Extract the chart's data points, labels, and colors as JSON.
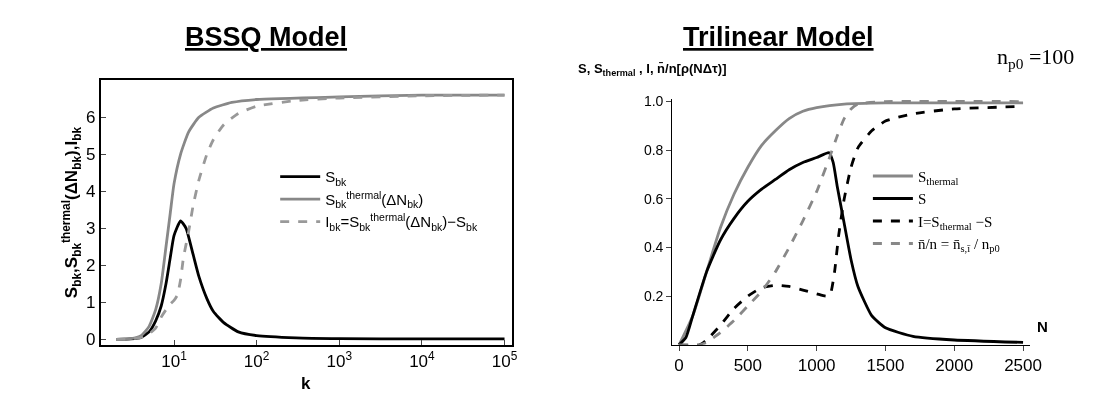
{
  "chart_data": [
    {
      "type": "line",
      "title": "BSSQ Model",
      "xlabel": "k",
      "ylabel": "S$_{bk}$,S$_{bk}$$^{thermal}$(ΔN$_{bk}$),I$_{bk}$",
      "log": "x",
      "xlim": [
        1.3,
        123000
      ],
      "ylim": [
        -0.15,
        7
      ],
      "xticks": [
        {
          "value": 10,
          "label": "10$^{1}$"
        },
        {
          "value": 100,
          "label": "10$^{2}$"
        },
        {
          "value": 1000,
          "label": "10$^{3}$"
        },
        {
          "value": 10000,
          "label": "10$^{4}$"
        },
        {
          "value": 100000,
          "label": "10$^{5}$"
        }
      ],
      "yticks": [
        0,
        1,
        2,
        3,
        4,
        5,
        6
      ],
      "legend": "right",
      "series": [
        {
          "name": "S$_{bk}$",
          "color": "#000000",
          "line_style": "solid",
          "x": [
            2,
            3,
            4,
            5,
            6,
            7,
            8,
            9,
            10,
            12,
            14,
            17,
            20,
            25,
            30,
            40,
            60,
            100,
            300,
            1000,
            10000,
            100000
          ],
          "values": [
            0,
            0.01,
            0.05,
            0.2,
            0.5,
            0.9,
            1.5,
            2.2,
            2.8,
            3.2,
            3.0,
            2.3,
            1.7,
            1.1,
            0.75,
            0.45,
            0.2,
            0.1,
            0.04,
            0.02,
            0.01,
            0.01
          ]
        },
        {
          "name": "S$_{bk}$$^{thermal}$(ΔN$_{bk}$)",
          "color": "#888888",
          "line_style": "solid",
          "x": [
            2,
            3,
            4,
            5,
            6,
            7,
            8,
            9,
            10,
            12,
            15,
            20,
            30,
            50,
            100,
            1000,
            10000,
            100000
          ],
          "values": [
            0,
            0.02,
            0.1,
            0.35,
            0.8,
            1.5,
            2.5,
            3.4,
            4.2,
            5.0,
            5.6,
            6.0,
            6.25,
            6.4,
            6.48,
            6.55,
            6.6,
            6.6
          ]
        },
        {
          "name": "I$_{bk}$=S$_{bk}$$^{thermal}$(ΔN$_{bk}$)−S$_{bk}$",
          "color": "#999999",
          "line_style": "dashed",
          "x": [
            2,
            3,
            4,
            5,
            6,
            7,
            8,
            9,
            10,
            11,
            12,
            13,
            15,
            17,
            20,
            25,
            30,
            40,
            60,
            100,
            300,
            1000,
            10000,
            100000
          ],
          "values": [
            0,
            0.01,
            0.05,
            0.15,
            0.3,
            0.6,
            0.8,
            0.95,
            1.05,
            1.2,
            1.6,
            2.2,
            2.9,
            3.6,
            4.3,
            5.0,
            5.4,
            5.8,
            6.1,
            6.3,
            6.45,
            6.52,
            6.58,
            6.6
          ]
        }
      ]
    },
    {
      "type": "line",
      "title": "Trilinear Model",
      "xlabel": "N",
      "ylabel": "S, S$_{thermal}$ , I, n̄/n[ρ(NΔτ)]",
      "xlim": [
        -50,
        2550
      ],
      "ylim": [
        0,
        1.01
      ],
      "xticks": [
        0,
        500,
        1000,
        1500,
        2000,
        2500
      ],
      "yticks": [
        0.2,
        0.4,
        0.6,
        0.8,
        {
          "value": 1,
          "label": "1.0"
        }
      ],
      "legend": "right",
      "annotations": [
        "n$_{p0}$ =100"
      ],
      "series": [
        {
          "name": "S$_{thermal}$",
          "color": "#888888",
          "line_style": "solid",
          "x": [
            0,
            100,
            200,
            300,
            400,
            500,
            600,
            700,
            800,
            900,
            1000,
            1200,
            1500,
            2500
          ],
          "values": [
            0,
            0.12,
            0.3,
            0.48,
            0.62,
            0.73,
            0.82,
            0.88,
            0.93,
            0.96,
            0.975,
            0.99,
            0.995,
            0.995
          ]
        },
        {
          "name": "S",
          "color": "#000000",
          "line_style": "solid",
          "x": [
            0,
            50,
            100,
            200,
            300,
            400,
            500,
            600,
            700,
            800,
            900,
            1000,
            1090,
            1120,
            1150,
            1200,
            1250,
            1300,
            1400,
            1500,
            1700,
            2000,
            2500
          ],
          "values": [
            0,
            0.03,
            0.12,
            0.3,
            0.43,
            0.52,
            0.59,
            0.64,
            0.68,
            0.72,
            0.75,
            0.77,
            0.79,
            0.75,
            0.65,
            0.5,
            0.35,
            0.24,
            0.12,
            0.07,
            0.035,
            0.02,
            0.01
          ]
        },
        {
          "name": "I=S$_{thermal}$ −S",
          "color": "#000000",
          "line_style": "dashed",
          "x": [
            0,
            150,
            200,
            300,
            400,
            500,
            600,
            700,
            800,
            900,
            1000,
            1070,
            1100,
            1130,
            1160,
            1200,
            1250,
            1300,
            1400,
            1500,
            1700,
            2000,
            2500
          ],
          "values": [
            0,
            0,
            0.02,
            0.08,
            0.15,
            0.2,
            0.235,
            0.245,
            0.24,
            0.225,
            0.21,
            0.2,
            0.21,
            0.3,
            0.45,
            0.6,
            0.73,
            0.81,
            0.88,
            0.92,
            0.95,
            0.97,
            0.98
          ]
        },
        {
          "name": "n̄/n = n̄$_{s,ī}$ / n$_{p0}$",
          "color": "#888888",
          "line_style": "dashed",
          "x": [
            0,
            150,
            200,
            300,
            400,
            500,
            600,
            700,
            800,
            900,
            1000,
            1100,
            1150,
            1200,
            1250,
            1300,
            1500,
            2500
          ],
          "values": [
            0,
            0,
            0.01,
            0.05,
            0.1,
            0.16,
            0.22,
            0.3,
            0.4,
            0.51,
            0.63,
            0.78,
            0.86,
            0.93,
            0.97,
            0.99,
            1.0,
            1.0
          ]
        }
      ]
    }
  ]
}
